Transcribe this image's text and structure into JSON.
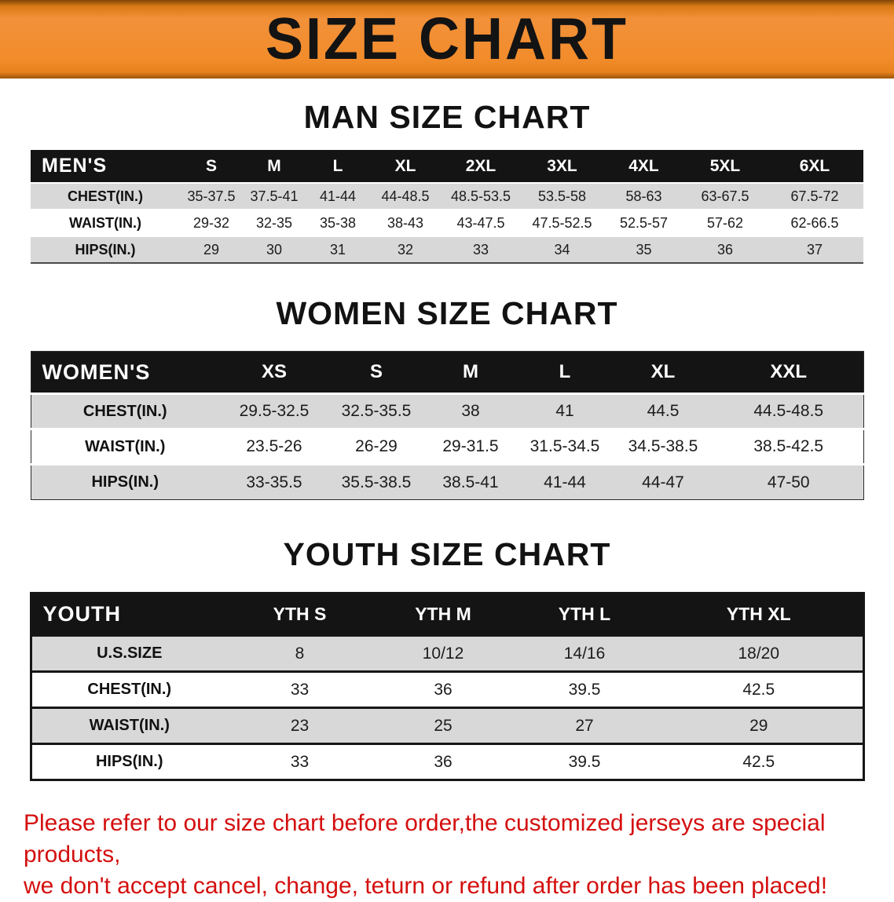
{
  "banner": {
    "title": "SIZE CHART"
  },
  "man": {
    "heading": "MAN SIZE CHART",
    "table": {
      "header": [
        "MEN'S",
        "S",
        "M",
        "L",
        "XL",
        "2XL",
        "3XL",
        "4XL",
        "5XL",
        "6XL"
      ],
      "rows": [
        [
          "CHEST(IN.)",
          "35-37.5",
          "37.5-41",
          "41-44",
          "44-48.5",
          "48.5-53.5",
          "53.5-58",
          "58-63",
          "63-67.5",
          "67.5-72"
        ],
        [
          "WAIST(IN.)",
          "29-32",
          "32-35",
          "35-38",
          "38-43",
          "43-47.5",
          "47.5-52.5",
          "52.5-57",
          "57-62",
          "62-66.5"
        ],
        [
          "HIPS(IN.)",
          "29",
          "30",
          "31",
          "32",
          "33",
          "34",
          "35",
          "36",
          "37"
        ]
      ]
    }
  },
  "women": {
    "heading": "WOMEN SIZE CHART",
    "table": {
      "header": [
        "WOMEN'S",
        "XS",
        "S",
        "M",
        "L",
        "XL",
        "XXL"
      ],
      "rows": [
        [
          "CHEST(IN.)",
          "29.5-32.5",
          "32.5-35.5",
          "38",
          "41",
          "44.5",
          "44.5-48.5"
        ],
        [
          "WAIST(IN.)",
          "23.5-26",
          "26-29",
          "29-31.5",
          "31.5-34.5",
          "34.5-38.5",
          "38.5-42.5"
        ],
        [
          "HIPS(IN.)",
          "33-35.5",
          "35.5-38.5",
          "38.5-41",
          "41-44",
          "44-47",
          "47-50"
        ]
      ]
    }
  },
  "youth": {
    "heading": "YOUTH SIZE CHART",
    "table": {
      "header": [
        "YOUTH",
        "YTH S",
        "YTH M",
        "YTH L",
        "YTH XL"
      ],
      "rows": [
        [
          "U.S.SIZE",
          "8",
          "10/12",
          "14/16",
          "18/20"
        ],
        [
          "CHEST(IN.)",
          "33",
          "36",
          "39.5",
          "42.5"
        ],
        [
          "WAIST(IN.)",
          "23",
          "25",
          "27",
          "29"
        ],
        [
          "HIPS(IN.)",
          "33",
          "36",
          "39.5",
          "42.5"
        ]
      ]
    }
  },
  "footer": {
    "line1": "Please refer to our size chart before order,the customized jerseys are special products,",
    "line2": "we don't accept cancel, change, teturn or refund after order has been placed!"
  },
  "colors": {
    "banner_orange": "#f28c2b",
    "table_header_black": "#141414",
    "row_gray": "#d8d8d8",
    "note_red": "#d40f0f"
  }
}
